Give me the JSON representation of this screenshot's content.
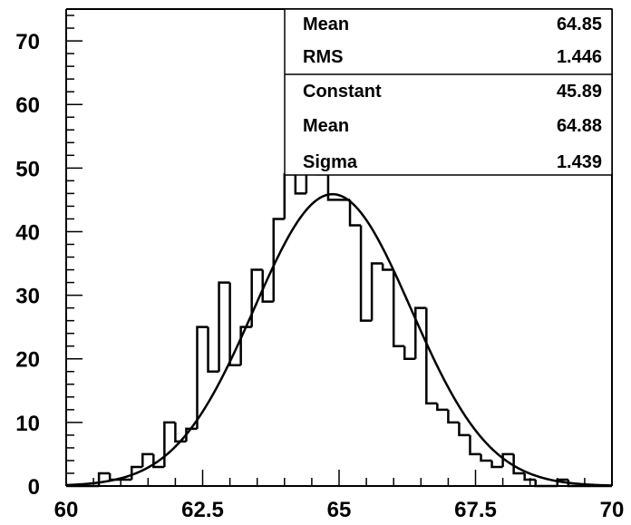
{
  "chart_data": {
    "type": "histogram",
    "title": "",
    "xlabel": "",
    "ylabel": "",
    "xlim": [
      60,
      70
    ],
    "ylim": [
      0,
      75
    ],
    "x_ticks": [
      60,
      62.5,
      65,
      67.5,
      70
    ],
    "x_tick_labels": [
      "60",
      "62.5",
      "65",
      "67.5",
      "70"
    ],
    "y_ticks": [
      0,
      10,
      20,
      30,
      40,
      50,
      60,
      70
    ],
    "y_tick_labels": [
      "0",
      "10",
      "20",
      "30",
      "40",
      "50",
      "60",
      "70"
    ],
    "bin_edges": [
      60.0,
      60.2,
      60.4,
      60.6,
      60.8,
      61.0,
      61.2,
      61.4,
      61.6,
      61.8,
      62.0,
      62.2,
      62.4,
      62.6,
      62.8,
      63.0,
      63.2,
      63.4,
      63.6,
      63.8,
      64.0,
      64.2,
      64.4,
      64.6,
      64.8,
      65.0,
      65.2,
      65.4,
      65.6,
      65.8,
      66.0,
      66.2,
      66.4,
      66.6,
      66.8,
      67.0,
      67.2,
      67.4,
      67.6,
      67.8,
      68.0,
      68.2,
      68.4,
      68.6,
      68.8,
      69.0,
      69.2,
      69.4,
      69.6,
      69.8,
      70.0
    ],
    "counts": [
      0,
      0,
      0,
      2,
      1,
      1,
      3,
      5,
      3,
      10,
      7,
      9,
      25,
      18,
      32,
      19,
      25,
      34,
      29,
      42,
      49,
      46,
      56,
      49,
      45,
      45,
      41,
      26,
      35,
      34,
      22,
      20,
      28,
      13,
      12,
      10,
      8,
      5,
      4,
      3,
      5,
      2,
      1,
      0,
      0,
      1,
      0,
      0,
      0,
      0
    ],
    "fit": {
      "type": "gaussian",
      "constant": 45.89,
      "mean": 64.88,
      "sigma": 1.439
    },
    "stats_box": {
      "rows": [
        {
          "label": "Mean",
          "value": "64.85"
        },
        {
          "label": "RMS",
          "value": "1.446"
        },
        {
          "label": "Constant",
          "value": "45.89"
        },
        {
          "label": "Mean",
          "value": "64.88"
        },
        {
          "label": "Sigma",
          "value": "1.439"
        }
      ]
    }
  }
}
